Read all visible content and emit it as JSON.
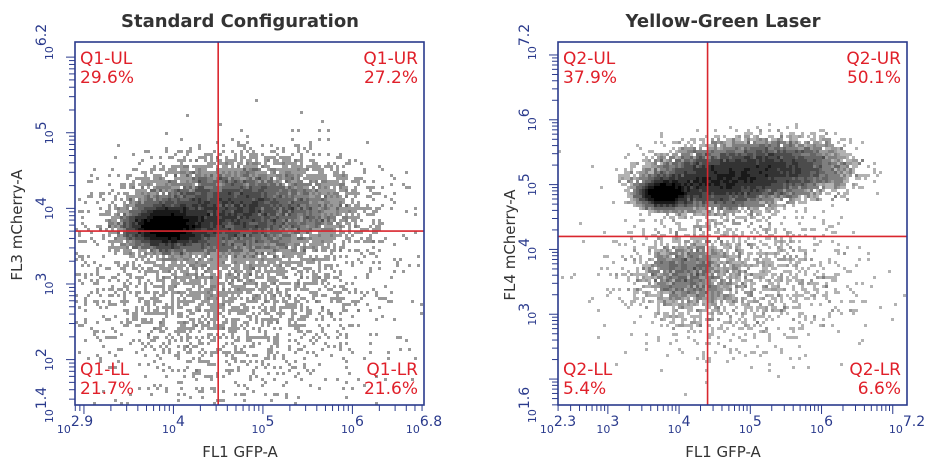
{
  "chart_data": [
    {
      "type": "scatter",
      "title": "Standard Configuration",
      "xlabel": "FL1 GFP-A",
      "ylabel": "FL3 mCherry-A",
      "x_scale": "log10",
      "y_scale": "log10",
      "xlim": [
        794.3,
        6309573
      ],
      "ylim": [
        25.1,
        1584893
      ],
      "x_tick_labels": [
        {
          "base": "10",
          "exp": "2.9",
          "value": 794.3
        },
        {
          "base": "10",
          "exp": "4",
          "value": 10000
        },
        {
          "base": "10",
          "exp": "5",
          "value": 100000
        },
        {
          "base": "10",
          "exp": "6",
          "value": 1000000
        },
        {
          "base": "10",
          "exp": "6.8",
          "value": 6309573
        }
      ],
      "y_tick_labels": [
        {
          "base": "10",
          "exp": "1.4",
          "value": 25.1
        },
        {
          "base": "10",
          "exp": "2",
          "value": 100
        },
        {
          "base": "10",
          "exp": "3",
          "value": 1000
        },
        {
          "base": "10",
          "exp": "4",
          "value": 10000
        },
        {
          "base": "10",
          "exp": "5",
          "value": 100000
        },
        {
          "base": "10",
          "exp": "6.2",
          "value": 1584893
        }
      ],
      "gate": {
        "x": 31623,
        "y": 5012
      },
      "quadrants": [
        {
          "name": "Q1-UL",
          "percent": "29.6%",
          "corner": "top-left"
        },
        {
          "name": "Q1-UR",
          "percent": "27.2%",
          "corner": "top-right"
        },
        {
          "name": "Q1-LL",
          "percent": "21.7%",
          "corner": "bottom-left"
        },
        {
          "name": "Q1-LR",
          "percent": "21.6%",
          "corner": "bottom-right"
        }
      ],
      "density_clusters": [
        {
          "log_x": 3.92,
          "log_y": 3.76,
          "sx": 0.2,
          "sy": 0.13,
          "weight": 0.42
        },
        {
          "log_x": 4.45,
          "log_y": 3.92,
          "sx": 0.42,
          "sy": 0.26,
          "weight": 0.28
        },
        {
          "log_x": 5.05,
          "log_y": 4.02,
          "sx": 0.5,
          "sy": 0.3,
          "weight": 0.18
        },
        {
          "log_x": 4.6,
          "log_y": 3.05,
          "sx": 0.85,
          "sy": 0.7,
          "weight": 0.12
        }
      ],
      "colors": {
        "frame": "#2a3a8c",
        "gate": "#d9262e",
        "quadrant_label": "#e0202a",
        "points": "#000000"
      }
    },
    {
      "type": "scatter",
      "title": "Yellow-Green Laser",
      "xlabel": "FL1 GFP-A",
      "ylabel": "FL4 mCherry-A",
      "x_scale": "log10",
      "y_scale": "log10",
      "xlim": [
        199.5,
        15848932
      ],
      "ylim": [
        39.8,
        15848932
      ],
      "x_tick_labels": [
        {
          "base": "10",
          "exp": "2.3",
          "value": 199.5
        },
        {
          "base": "10",
          "exp": "3",
          "value": 1000
        },
        {
          "base": "10",
          "exp": "4",
          "value": 10000
        },
        {
          "base": "10",
          "exp": "5",
          "value": 100000
        },
        {
          "base": "10",
          "exp": "6",
          "value": 1000000
        },
        {
          "base": "10",
          "exp": "7.2",
          "value": 15848932
        }
      ],
      "y_tick_labels": [
        {
          "base": "10",
          "exp": "1.6",
          "value": 39.8
        },
        {
          "base": "10",
          "exp": "3",
          "value": 1000
        },
        {
          "base": "10",
          "exp": "4",
          "value": 10000
        },
        {
          "base": "10",
          "exp": "5",
          "value": 100000
        },
        {
          "base": "10",
          "exp": "6",
          "value": 1000000
        },
        {
          "base": "10",
          "exp": "7.2",
          "value": 15848932
        }
      ],
      "gate": {
        "x": 25119,
        "y": 15849
      },
      "quadrants": [
        {
          "name": "Q2-UL",
          "percent": "37.9%",
          "corner": "top-left"
        },
        {
          "name": "Q2-UR",
          "percent": "50.1%",
          "corner": "top-right"
        },
        {
          "name": "Q2-LL",
          "percent": "5.4%",
          "corner": "bottom-left"
        },
        {
          "name": "Q2-LR",
          "percent": "6.6%",
          "corner": "bottom-right"
        }
      ],
      "density_clusters": [
        {
          "log_x": 3.8,
          "log_y": 4.87,
          "sx": 0.16,
          "sy": 0.1,
          "weight": 0.25
        },
        {
          "log_x": 4.5,
          "log_y": 5.05,
          "sx": 0.45,
          "sy": 0.2,
          "weight": 0.35
        },
        {
          "log_x": 5.3,
          "log_y": 5.25,
          "sx": 0.48,
          "sy": 0.2,
          "weight": 0.28
        },
        {
          "log_x": 4.1,
          "log_y": 3.6,
          "sx": 0.3,
          "sy": 0.25,
          "weight": 0.06
        },
        {
          "log_x": 4.8,
          "log_y": 3.6,
          "sx": 0.8,
          "sy": 0.55,
          "weight": 0.06
        }
      ],
      "colors": {
        "frame": "#2a3a8c",
        "gate": "#d9262e",
        "quadrant_label": "#e0202a",
        "points": "#000000"
      }
    }
  ]
}
